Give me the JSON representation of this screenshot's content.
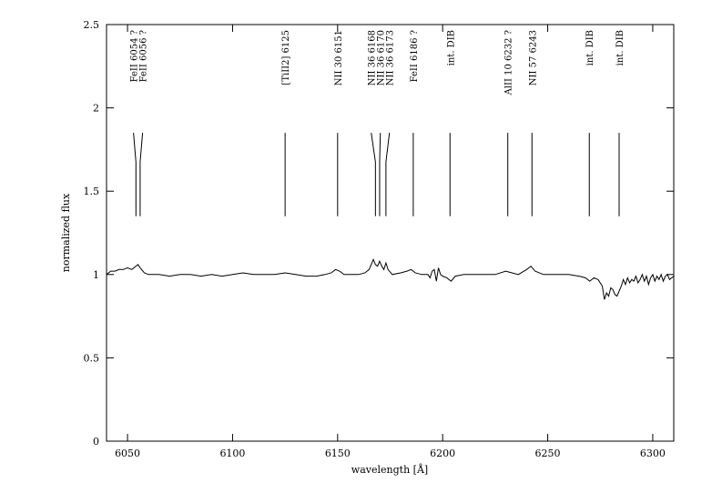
{
  "chart_data": {
    "type": "line",
    "x_label": "wavelength [Å]",
    "y_label": "normalized flux",
    "xlim": [
      6040,
      6310
    ],
    "ylim": [
      0,
      2.5
    ],
    "xticks": [
      6050,
      6100,
      6150,
      6200,
      6250,
      6300
    ],
    "yticks": [
      0,
      0.5,
      1,
      1.5,
      2,
      2.5
    ],
    "color": "#000000",
    "x": [
      6040,
      6042,
      6044,
      6046,
      6048,
      6050,
      6052,
      6054,
      6055,
      6056,
      6058,
      6060,
      6065,
      6070,
      6075,
      6080,
      6085,
      6090,
      6095,
      6100,
      6105,
      6110,
      6115,
      6120,
      6125,
      6130,
      6135,
      6140,
      6144,
      6147,
      6149,
      6151,
      6153,
      6156,
      6160,
      6163,
      6165,
      6166,
      6167,
      6168,
      6169,
      6170,
      6171,
      6172,
      6173,
      6174,
      6176,
      6180,
      6183,
      6185,
      6187,
      6190,
      6193,
      6194,
      6195,
      6196,
      6197,
      6198,
      6199,
      6200,
      6202,
      6204,
      6206,
      6210,
      6215,
      6220,
      6225,
      6230,
      6233,
      6236,
      6240,
      6242,
      6244,
      6248,
      6252,
      6256,
      6260,
      6265,
      6268,
      6270,
      6272,
      6274,
      6276,
      6277,
      6278,
      6279,
      6280,
      6281,
      6282,
      6283,
      6284,
      6285,
      6286,
      6287,
      6288,
      6289,
      6290,
      6291,
      6292,
      6293,
      6294,
      6295,
      6296,
      6297,
      6298,
      6299,
      6300,
      6301,
      6302,
      6303,
      6304,
      6305,
      6306,
      6307,
      6308,
      6310
    ],
    "y": [
      1.0,
      1.02,
      1.02,
      1.03,
      1.03,
      1.04,
      1.03,
      1.05,
      1.06,
      1.04,
      1.01,
      1.0,
      1.0,
      0.99,
      1.0,
      1.0,
      0.99,
      1.0,
      0.99,
      1.0,
      1.01,
      1.0,
      1.0,
      1.0,
      1.01,
      1.0,
      0.99,
      0.99,
      1.0,
      1.01,
      1.03,
      1.02,
      1.0,
      1.0,
      1.0,
      1.01,
      1.03,
      1.06,
      1.09,
      1.06,
      1.05,
      1.08,
      1.05,
      1.03,
      1.07,
      1.03,
      1.0,
      1.01,
      1.02,
      1.03,
      1.01,
      1.0,
      1.0,
      0.98,
      1.02,
      1.03,
      0.96,
      1.04,
      1.0,
      0.99,
      0.98,
      0.96,
      0.99,
      1.0,
      1.0,
      1.0,
      1.0,
      1.02,
      1.01,
      1.0,
      1.03,
      1.05,
      1.02,
      1.0,
      1.0,
      1.0,
      1.0,
      0.99,
      0.98,
      0.96,
      0.98,
      0.97,
      0.93,
      0.85,
      0.89,
      0.87,
      0.92,
      0.91,
      0.88,
      0.87,
      0.9,
      0.93,
      0.97,
      0.94,
      0.98,
      0.95,
      0.97,
      0.96,
      0.99,
      0.95,
      0.97,
      1.0,
      0.96,
      0.99,
      0.94,
      0.98,
      1.0,
      0.96,
      0.99,
      0.97,
      1.0,
      0.96,
      0.99,
      1.0,
      0.97,
      0.99
    ],
    "marker_range": [
      1.35,
      1.85
    ],
    "annotations": [
      {
        "label": "FeII 6054 ?",
        "x": 6054
      },
      {
        "label": "FeII 6056 ?",
        "x": 6056
      },
      {
        "label": "[TiII2] 6125",
        "x": 6125
      },
      {
        "label": "NII 30 6151",
        "x": 6150
      },
      {
        "label": "NII 36 6168",
        "x": 6168
      },
      {
        "label": "NII 36 6170",
        "x": 6170
      },
      {
        "label": "NII 36 6173",
        "x": 6173
      },
      {
        "label": "FeII 6186 ?",
        "x": 6186
      },
      {
        "label": "int. DIB",
        "x": 6203.5
      },
      {
        "label": "AlII 10 6232 ?",
        "x": 6231
      },
      {
        "label": "NII 57 6243",
        "x": 6242.5
      },
      {
        "label": "int. DIB",
        "x": 6269.8
      },
      {
        "label": "int. DIB",
        "x": 6284
      }
    ]
  }
}
